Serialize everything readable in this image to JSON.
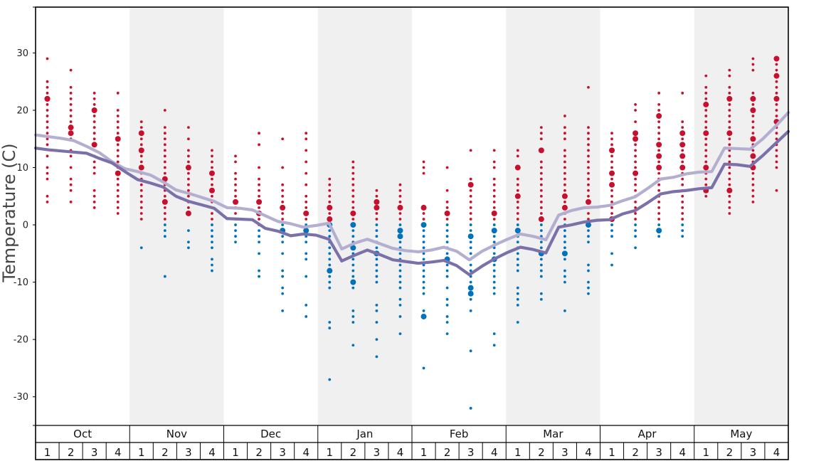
{
  "chart_data": {
    "type": "scatter",
    "ylabel": "Temperature (C)",
    "ylim": [
      -35,
      38
    ],
    "yticks": [
      -30,
      -20,
      -10,
      0,
      10,
      20,
      30
    ],
    "months": [
      "Oct",
      "Nov",
      "Dec",
      "Jan",
      "Feb",
      "Mar",
      "Apr",
      "May"
    ],
    "week_labels": [
      "1",
      "2",
      "3",
      "4"
    ],
    "colors": {
      "warm_points": "#c8102e",
      "cold_points": "#0072bc",
      "upper_line": "#b4afd0",
      "lower_line": "#7b70a8",
      "shade_band": "#f0f0f0",
      "frame": "#000000"
    },
    "series": [
      {
        "values": [
          15.7,
          15.4,
          15.1,
          14.7,
          13.7,
          12.6,
          11.0,
          9.8,
          9.3,
          8.7,
          7.5,
          6.1,
          5.5,
          4.8,
          4.1,
          3.0,
          2.9,
          2.6,
          1.6,
          0.6,
          0.2,
          -0.4,
          -0.1,
          0.3,
          -4.2,
          -3.2,
          -2.5,
          -3.3,
          -4.1,
          -4.5,
          -4.7,
          -4.4,
          -3.9,
          -4.6,
          -6.1,
          -4.6,
          -3.5,
          -2.5,
          -1.6,
          -2.0,
          -2.6,
          1.7,
          2.5,
          3.0,
          3.1,
          3.4,
          4.2,
          4.9,
          6.4,
          8.0,
          8.3,
          8.9,
          9.2,
          9.3,
          13.4,
          13.3,
          13.2,
          15.0,
          17.2,
          19.6
        ]
      },
      {
        "values": [
          13.4,
          13.1,
          12.9,
          12.7,
          12.5,
          11.6,
          10.8,
          9.3,
          7.9,
          7.3,
          6.6,
          5.0,
          4.1,
          3.5,
          2.9,
          1.1,
          1.0,
          0.9,
          -0.6,
          -1.1,
          -1.9,
          -1.6,
          -1.8,
          -2.5,
          -6.3,
          -5.3,
          -4.4,
          -5.2,
          -6.1,
          -6.4,
          -6.7,
          -6.5,
          -6.2,
          -7.1,
          -8.7,
          -7.2,
          -5.9,
          -4.8,
          -3.9,
          -4.3,
          -4.9,
          -0.4,
          0.0,
          0.5,
          0.8,
          0.9,
          1.9,
          2.5,
          3.9,
          5.4,
          5.8,
          6.0,
          6.3,
          6.5,
          10.6,
          10.5,
          10.2,
          12.1,
          14.2,
          16.3
        ]
      }
    ],
    "weekly_points": [
      {
        "values": [
          29,
          25,
          24,
          23,
          22,
          22,
          21,
          20,
          19,
          18,
          17,
          16,
          15,
          14,
          12,
          10,
          9,
          8,
          5,
          4
        ],
        "big": [
          22
        ]
      },
      {
        "values": [
          27,
          24,
          23,
          22,
          21,
          20,
          19,
          18,
          17,
          16,
          15,
          13,
          12,
          10,
          8,
          7,
          6,
          4
        ],
        "big": [
          17,
          16
        ]
      },
      {
        "values": [
          23,
          22,
          21,
          20,
          19,
          18,
          17,
          16,
          15,
          14,
          13,
          12,
          11,
          10,
          9,
          6,
          5,
          4,
          3
        ],
        "big": [
          20,
          14
        ]
      },
      {
        "values": [
          23,
          20,
          19,
          18,
          17,
          16,
          15,
          14,
          13,
          12,
          11,
          10,
          9,
          8,
          7,
          6,
          5,
          4,
          3,
          2
        ],
        "big": [
          15,
          9
        ]
      },
      {
        "values": [
          18,
          17,
          16,
          15,
          14,
          13,
          12,
          11,
          10,
          9,
          8,
          7,
          6,
          5,
          4,
          3,
          2,
          1,
          -4
        ],
        "big": [
          16,
          13,
          10
        ]
      },
      {
        "values": [
          20,
          17,
          16,
          15,
          14,
          13,
          12,
          11,
          10,
          9,
          8,
          7,
          6,
          5,
          4,
          3,
          2,
          1,
          0,
          -1,
          -2,
          -9
        ],
        "big": [
          8,
          4
        ]
      },
      {
        "values": [
          17,
          15,
          13,
          12,
          11,
          10,
          9,
          8,
          7,
          6,
          5,
          4,
          3,
          2,
          -1,
          -3,
          -4
        ],
        "big": [
          10,
          2
        ]
      },
      {
        "values": [
          13,
          12,
          11,
          10,
          9,
          8,
          7,
          6,
          5,
          4,
          3,
          2,
          1,
          0,
          -1,
          -2,
          -3,
          -4,
          -6,
          -7,
          -8
        ],
        "big": [
          9,
          6
        ]
      },
      {
        "values": [
          12,
          11,
          9,
          8,
          7,
          6,
          5,
          4,
          3,
          2,
          1,
          0,
          -1,
          -2,
          -3
        ],
        "big": [
          4
        ]
      },
      {
        "values": [
          16,
          14,
          10,
          8,
          7,
          6,
          5,
          4,
          3,
          2,
          1,
          0,
          -1,
          -2,
          -3,
          -5,
          -8,
          -9
        ],
        "big": [
          4,
          2
        ]
      },
      {
        "values": [
          15,
          10,
          7,
          6,
          5,
          4,
          3,
          2,
          1,
          0,
          -1,
          -2,
          -3,
          -5,
          -8,
          -9,
          -11,
          -12,
          -15
        ],
        "big": [
          3,
          -1
        ]
      },
      {
        "values": [
          16,
          15,
          13,
          11,
          9,
          7,
          5,
          4,
          3,
          2,
          1,
          0,
          -1,
          -2,
          -3,
          -5,
          -6,
          -9,
          -14,
          -16
        ],
        "big": [
          2,
          -1
        ]
      },
      {
        "values": [
          8,
          7,
          6,
          5,
          4,
          3,
          2,
          1,
          0,
          -1,
          -2,
          -3,
          -4,
          -5,
          -6,
          -7,
          -8,
          -9,
          -10,
          -11,
          -17,
          -18,
          -27
        ],
        "big": [
          3,
          1,
          0,
          -8
        ]
      },
      {
        "values": [
          11,
          10,
          9,
          8,
          7,
          6,
          5,
          4,
          3,
          2,
          1,
          0,
          -1,
          -2,
          -3,
          -4,
          -5,
          -6,
          -7,
          -8,
          -9,
          -10,
          -11,
          -15,
          -16,
          -17,
          -21
        ],
        "big": [
          2,
          0,
          -4,
          -10
        ]
      },
      {
        "values": [
          6,
          5,
          4,
          3,
          2,
          1,
          0,
          -1,
          -2,
          -3,
          -4,
          -5,
          -6,
          -7,
          -8,
          -9,
          -10,
          -14,
          -15,
          -17,
          -20,
          -23
        ],
        "big": [
          4,
          3,
          -5
        ]
      },
      {
        "values": [
          7,
          6,
          5,
          4,
          3,
          2,
          1,
          0,
          -1,
          -2,
          -3,
          -4,
          -5,
          -6,
          -7,
          -8,
          -9,
          -10,
          -11,
          -13,
          -14,
          -16,
          -19
        ],
        "big": [
          3,
          -1,
          -2
        ]
      },
      {
        "values": [
          11,
          10,
          9,
          3,
          2,
          1,
          0,
          -1,
          -2,
          -3,
          -4,
          -5,
          -6,
          -7,
          -8,
          -9,
          -10,
          -11,
          -12,
          -15,
          -16,
          -25
        ],
        "big": [
          3,
          0,
          -16
        ]
      },
      {
        "values": [
          10,
          6,
          4,
          3,
          2,
          1,
          0,
          -1,
          -2,
          -3,
          -4,
          -5,
          -6,
          -7,
          -8,
          -9,
          -11,
          -13,
          -14,
          -16,
          -17,
          -19
        ],
        "big": [
          2,
          -6
        ]
      },
      {
        "values": [
          13,
          8,
          7,
          6,
          5,
          4,
          3,
          2,
          1,
          0,
          -1,
          -2,
          -3,
          -4,
          -5,
          -6,
          -7,
          -8,
          -9,
          -10,
          -11,
          -12,
          -13,
          -15,
          -22,
          -32
        ],
        "big": [
          7,
          -2,
          -11,
          -12
        ]
      },
      {
        "values": [
          13,
          11,
          10,
          8,
          7,
          6,
          5,
          4,
          3,
          2,
          1,
          0,
          -1,
          -2,
          -3,
          -4,
          -5,
          -6,
          -7,
          -8,
          -9,
          -10,
          -11,
          -12,
          -19,
          -21
        ],
        "big": [
          2,
          -1,
          -6
        ]
      },
      {
        "values": [
          13,
          12,
          10,
          8,
          7,
          6,
          5,
          4,
          3,
          2,
          1,
          0,
          -1,
          -2,
          -3,
          -4,
          -5,
          -6,
          -7,
          -8,
          -11,
          -12,
          -13,
          -14,
          -17
        ],
        "big": [
          10,
          5,
          -1
        ]
      },
      {
        "values": [
          17,
          16,
          15,
          13,
          11,
          10,
          9,
          8,
          7,
          6,
          5,
          4,
          3,
          2,
          1,
          0,
          -1,
          -2,
          -3,
          -4,
          -5,
          -6,
          -7,
          -8,
          -9,
          -12,
          -13
        ],
        "big": [
          13,
          1,
          -5
        ]
      },
      {
        "values": [
          19,
          17,
          16,
          15,
          13,
          12,
          11,
          10,
          9,
          8,
          7,
          6,
          5,
          4,
          3,
          2,
          1,
          0,
          -1,
          -2,
          -3,
          -4,
          -5,
          -6,
          -8,
          -9,
          -10,
          -15
        ],
        "big": [
          5,
          3,
          -5
        ]
      },
      {
        "values": [
          24,
          17,
          16,
          15,
          14,
          13,
          12,
          11,
          10,
          9,
          8,
          7,
          6,
          5,
          4,
          3,
          2,
          1,
          0,
          -1,
          -2,
          -3,
          -7,
          -8,
          -10,
          -11,
          -12
        ],
        "big": [
          4,
          0
        ]
      },
      {
        "values": [
          16,
          15,
          14,
          13,
          12,
          11,
          10,
          9,
          8,
          7,
          6,
          5,
          4,
          3,
          2,
          1,
          0,
          -1,
          -2,
          -5,
          -7
        ],
        "big": [
          13,
          9,
          7,
          1
        ]
      },
      {
        "values": [
          21,
          20,
          18,
          16,
          15,
          14,
          13,
          12,
          11,
          10,
          9,
          8,
          7,
          6,
          5,
          4,
          3,
          2,
          1,
          0,
          -1,
          -2,
          -4
        ],
        "big": [
          16,
          15,
          9
        ]
      },
      {
        "values": [
          23,
          21,
          20,
          19,
          18,
          17,
          16,
          15,
          14,
          13,
          12,
          11,
          10,
          9,
          8,
          7,
          6,
          5,
          4,
          3,
          2,
          1,
          0,
          -1,
          -2
        ],
        "big": [
          19,
          14,
          12,
          10,
          -1
        ]
      },
      {
        "values": [
          23,
          18,
          17,
          16,
          15,
          14,
          13,
          12,
          11,
          10,
          9,
          8,
          7,
          6,
          5,
          4,
          3,
          2,
          1,
          0,
          -1,
          -2
        ],
        "big": [
          16,
          14,
          12,
          10
        ]
      },
      {
        "values": [
          26,
          24,
          23,
          22,
          21,
          20,
          19,
          18,
          17,
          16,
          15,
          14,
          13,
          12,
          11,
          10,
          9,
          8,
          7,
          6,
          5
        ],
        "big": [
          21,
          16,
          10,
          6
        ]
      },
      {
        "values": [
          27,
          26,
          24,
          23,
          22,
          21,
          20,
          19,
          18,
          17,
          16,
          15,
          14,
          13,
          12,
          11,
          10,
          9,
          8,
          7,
          6,
          5,
          4,
          3,
          2
        ],
        "big": [
          22,
          16,
          6
        ]
      },
      {
        "values": [
          29,
          28,
          27,
          23,
          22,
          21,
          20,
          19,
          18,
          17,
          16,
          15,
          14,
          13,
          12,
          11,
          10,
          9,
          8,
          7,
          6,
          5,
          4
        ],
        "big": [
          22,
          20,
          15,
          12,
          10
        ]
      },
      {
        "values": [
          29,
          28,
          27,
          26,
          25,
          24,
          23,
          22,
          21,
          20,
          19,
          18,
          17,
          16,
          15,
          14,
          13,
          12,
          11,
          10,
          6
        ],
        "big": [
          29,
          26,
          22,
          18
        ]
      }
    ]
  }
}
